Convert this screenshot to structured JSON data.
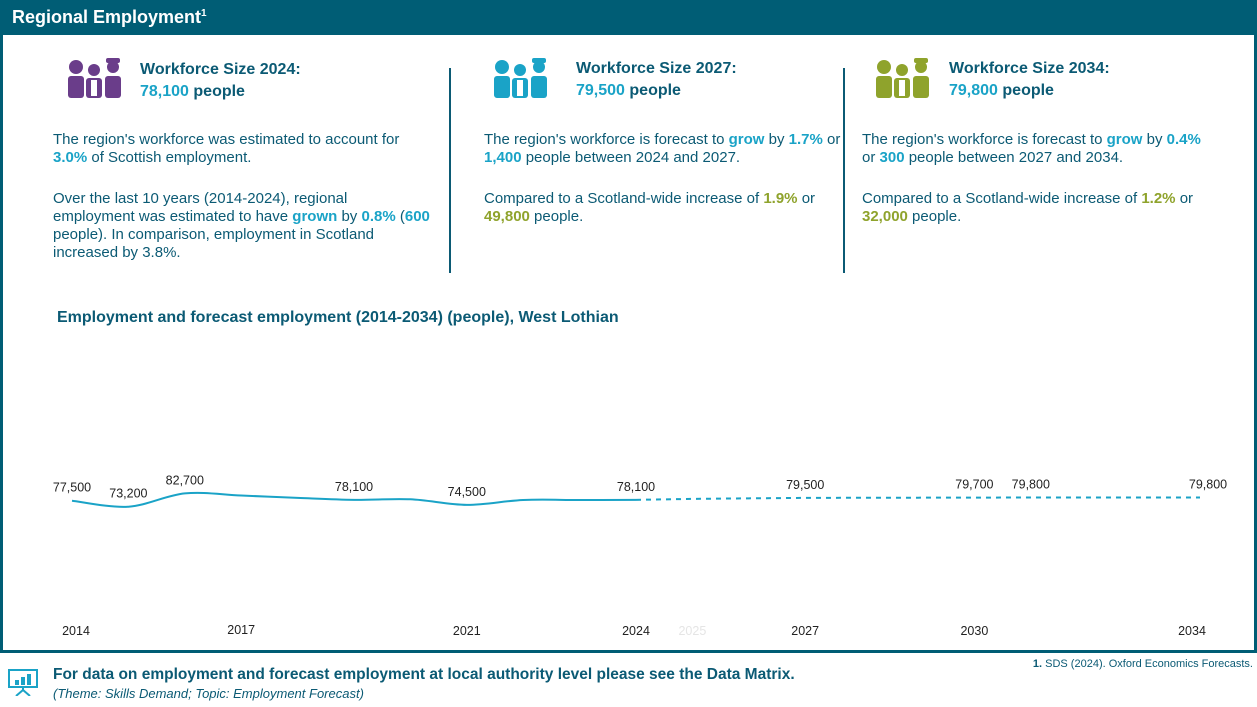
{
  "header": {
    "title": "Regional Employment",
    "footnote_ref": "1"
  },
  "cards": [
    {
      "title": "Workforce Size 2024:",
      "value": "78,100",
      "unit": "people",
      "icon_color": "#6a3d8a",
      "p1": {
        "a": "The region's workforce was estimated to account for ",
        "b": "3.0%",
        "c": " of Scottish employment."
      },
      "p2": {
        "a": "Over the last 10 years (2014-2024), regional employment was estimated to have ",
        "b": "grown",
        "c": " by ",
        "d": "0.8%",
        "e": " (",
        "f": "600",
        "g": " people). In comparison, employment in Scotland increased by 3.8%."
      }
    },
    {
      "title": "Workforce Size 2027:",
      "value": "79,500",
      "unit": "people",
      "icon_color": "#1aa3c7",
      "p1": {
        "a": "The region's workforce is forecast to ",
        "b": "grow",
        "c": " by ",
        "d": "1.7%",
        "e": " or ",
        "f": "1,400",
        "g": " people between 2024 and 2027."
      },
      "p2": {
        "a": "Compared to a Scotland-wide increase of ",
        "b": "1.9%",
        "c": " or ",
        "d": "49,800",
        "e": " people."
      }
    },
    {
      "title": "Workforce Size 2034:",
      "value": "79,800",
      "unit": "people",
      "icon_color": "#8fa32c",
      "p1": {
        "a": "The region's workforce is forecast to ",
        "b": "grow",
        "c": " by ",
        "d": "0.4%",
        "e": " or ",
        "f": "300",
        "g": " people between 2027 and 2034."
      },
      "p2": {
        "a": "Compared to a Scotland-wide increase of ",
        "b": "1.2%",
        "c": " or ",
        "d": "32,000",
        "e": " people."
      }
    }
  ],
  "chart_title": "Employment and forecast employment (2014-2034) (people), West Lothian",
  "chart_data": {
    "type": "line",
    "title": "Employment and forecast employment (2014-2034) (people), West Lothian",
    "x": [
      2014,
      2015,
      2016,
      2017,
      2018,
      2019,
      2020,
      2021,
      2022,
      2023,
      2024,
      2025,
      2026,
      2027,
      2028,
      2029,
      2030,
      2031,
      2032,
      2033,
      2034
    ],
    "series": [
      {
        "style": "solid",
        "color": "#1aa3c7",
        "x": [
          2014,
          2015,
          2016,
          2017,
          2018,
          2019,
          2020,
          2021,
          2022,
          2023,
          2024
        ],
        "values": [
          77500,
          73200,
          82700,
          81200,
          79500,
          78100,
          78500,
          74500,
          78000,
          78000,
          78100
        ]
      },
      {
        "style": "dashed",
        "color": "#1aa3c7",
        "x": [
          2024,
          2025,
          2026,
          2027,
          2028,
          2029,
          2030,
          2031,
          2032,
          2033,
          2034
        ],
        "values": [
          78100,
          78800,
          79200,
          79500,
          79600,
          79650,
          79700,
          79800,
          79800,
          79800,
          79800
        ]
      }
    ],
    "data_labels": [
      {
        "x": 2014,
        "value": 77500,
        "text": "77,500"
      },
      {
        "x": 2015,
        "value": 73200,
        "text": "73,200"
      },
      {
        "x": 2016,
        "value": 82700,
        "text": "82,700"
      },
      {
        "x": 2019,
        "value": 78100,
        "text": "78,100"
      },
      {
        "x": 2021,
        "value": 74500,
        "text": "74,500"
      },
      {
        "x": 2024,
        "value": 78100,
        "text": "78,100"
      },
      {
        "x": 2027,
        "value": 79500,
        "text": "79,500"
      },
      {
        "x": 2030,
        "value": 79700,
        "text": "79,700"
      },
      {
        "x": 2031,
        "value": 79800,
        "text": "79,800"
      },
      {
        "x": 2034,
        "value": 79800,
        "text": "79,800"
      }
    ],
    "x_tick_labels": [
      "2014",
      "2017",
      "2021",
      "2024",
      "2025",
      "2027",
      "2030",
      "2034"
    ],
    "faint_tick_labels": [
      "2025"
    ],
    "grid": false,
    "legend": "none"
  },
  "footer": {
    "main": "For data on employment and forecast employment at local authority level please see the Data Matrix.",
    "sub": "(Theme: Skills Demand; Topic: Employment Forecast)"
  },
  "source": {
    "num": "1.",
    "text": " SDS (2024). Oxford Economics Forecasts."
  }
}
